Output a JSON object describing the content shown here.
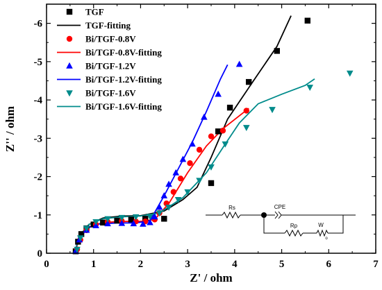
{
  "chart_data": {
    "type": "scatter",
    "xlabel": "Z' / ohm",
    "ylabel": "Z'' / ohm",
    "xlim": [
      0,
      7
    ],
    "ylim": [
      0,
      -6.5
    ],
    "xticks": [
      "0",
      "1",
      "2",
      "3",
      "4",
      "5",
      "6",
      "7"
    ],
    "yticks": [
      "0",
      "-1",
      "-2",
      "-3",
      "-4",
      "-5",
      "-6"
    ],
    "legend_position": "top-left",
    "series": [
      {
        "name": "TGF",
        "kind": "points",
        "marker": "square",
        "color": "#000000",
        "points": [
          [
            0.62,
            -0.05
          ],
          [
            0.67,
            -0.3
          ],
          [
            0.74,
            -0.5
          ],
          [
            0.85,
            -0.65
          ],
          [
            1.0,
            -0.75
          ],
          [
            1.2,
            -0.8
          ],
          [
            1.5,
            -0.85
          ],
          [
            1.8,
            -0.88
          ],
          [
            2.1,
            -0.9
          ],
          [
            2.5,
            -0.9
          ],
          [
            3.5,
            -1.83
          ],
          [
            3.65,
            -3.18
          ],
          [
            3.9,
            -3.8
          ],
          [
            4.3,
            -4.47
          ],
          [
            4.9,
            -5.28
          ],
          [
            5.55,
            -6.07
          ]
        ]
      },
      {
        "name": "TGF-fitting",
        "kind": "line",
        "color": "#000000",
        "points": [
          [
            0.6,
            0
          ],
          [
            0.7,
            -0.45
          ],
          [
            0.9,
            -0.75
          ],
          [
            1.2,
            -0.92
          ],
          [
            1.6,
            -0.97
          ],
          [
            2.0,
            -0.98
          ],
          [
            2.5,
            -1.1
          ],
          [
            2.9,
            -1.4
          ],
          [
            3.2,
            -1.72
          ],
          [
            3.5,
            -2.5
          ],
          [
            3.85,
            -3.5
          ],
          [
            4.4,
            -4.5
          ],
          [
            4.9,
            -5.4
          ],
          [
            5.2,
            -6.2
          ]
        ]
      },
      {
        "name": "Bi/TGF-0.8V",
        "kind": "points",
        "marker": "circle",
        "color": "#ff0000",
        "points": [
          [
            0.65,
            -0.1
          ],
          [
            0.72,
            -0.35
          ],
          [
            0.85,
            -0.6
          ],
          [
            1.05,
            -0.75
          ],
          [
            1.3,
            -0.82
          ],
          [
            1.6,
            -0.84
          ],
          [
            1.9,
            -0.83
          ],
          [
            2.1,
            -0.83
          ],
          [
            2.3,
            -0.88
          ],
          [
            2.4,
            -1.05
          ],
          [
            2.55,
            -1.3
          ],
          [
            2.7,
            -1.6
          ],
          [
            2.85,
            -1.95
          ],
          [
            3.05,
            -2.35
          ],
          [
            3.25,
            -2.7
          ],
          [
            3.5,
            -3.05
          ],
          [
            3.75,
            -3.2
          ],
          [
            4.25,
            -3.72
          ]
        ]
      },
      {
        "name": "Bi/TGF-0.8V-fitting",
        "kind": "line",
        "color": "#ff0000",
        "points": [
          [
            0.6,
            0
          ],
          [
            0.7,
            -0.4
          ],
          [
            0.9,
            -0.68
          ],
          [
            1.2,
            -0.8
          ],
          [
            1.6,
            -0.83
          ],
          [
            2.0,
            -0.83
          ],
          [
            2.3,
            -0.88
          ],
          [
            2.6,
            -1.3
          ],
          [
            3.0,
            -2.1
          ],
          [
            3.4,
            -2.8
          ],
          [
            3.75,
            -3.25
          ],
          [
            4.3,
            -3.78
          ]
        ]
      },
      {
        "name": "Bi/TGF-1.2V",
        "kind": "points",
        "marker": "triangle-up",
        "color": "#0000ff",
        "points": [
          [
            0.62,
            -0.05
          ],
          [
            0.7,
            -0.35
          ],
          [
            0.85,
            -0.6
          ],
          [
            1.05,
            -0.72
          ],
          [
            1.3,
            -0.77
          ],
          [
            1.6,
            -0.78
          ],
          [
            1.85,
            -0.77
          ],
          [
            2.05,
            -0.76
          ],
          [
            2.2,
            -0.8
          ],
          [
            2.3,
            -0.95
          ],
          [
            2.4,
            -1.2
          ],
          [
            2.5,
            -1.5
          ],
          [
            2.6,
            -1.8
          ],
          [
            2.75,
            -2.1
          ],
          [
            2.9,
            -2.45
          ],
          [
            3.1,
            -2.85
          ],
          [
            3.35,
            -3.55
          ],
          [
            3.65,
            -4.15
          ],
          [
            4.1,
            -4.93
          ]
        ]
      },
      {
        "name": "Bi/TGF-1.2V-fitting",
        "kind": "line",
        "color": "#0000ff",
        "points": [
          [
            0.6,
            0
          ],
          [
            0.68,
            -0.4
          ],
          [
            0.85,
            -0.65
          ],
          [
            1.1,
            -0.76
          ],
          [
            1.5,
            -0.79
          ],
          [
            1.9,
            -0.79
          ],
          [
            2.2,
            -0.85
          ],
          [
            2.5,
            -1.5
          ],
          [
            2.8,
            -2.2
          ],
          [
            3.1,
            -2.9
          ],
          [
            3.4,
            -3.7
          ],
          [
            3.7,
            -4.55
          ],
          [
            3.85,
            -4.92
          ]
        ]
      },
      {
        "name": "Bi/TGF-1.6V",
        "kind": "points",
        "marker": "triangle-down",
        "color": "#008b8b",
        "points": [
          [
            0.65,
            -0.1
          ],
          [
            0.72,
            -0.4
          ],
          [
            0.85,
            -0.65
          ],
          [
            1.05,
            -0.82
          ],
          [
            1.3,
            -0.9
          ],
          [
            1.6,
            -0.93
          ],
          [
            1.9,
            -0.95
          ],
          [
            2.2,
            -0.96
          ],
          [
            2.4,
            -1.05
          ],
          [
            2.6,
            -1.2
          ],
          [
            2.8,
            -1.4
          ],
          [
            3.0,
            -1.6
          ],
          [
            3.25,
            -1.9
          ],
          [
            3.5,
            -2.25
          ],
          [
            3.8,
            -2.85
          ],
          [
            4.25,
            -3.28
          ],
          [
            4.8,
            -3.75
          ],
          [
            5.6,
            -4.33
          ],
          [
            6.45,
            -4.7
          ]
        ]
      },
      {
        "name": "Bi/TGF-1.6V-fitting",
        "kind": "line",
        "color": "#008b8b",
        "points": [
          [
            0.6,
            0
          ],
          [
            0.7,
            -0.45
          ],
          [
            0.9,
            -0.75
          ],
          [
            1.2,
            -0.9
          ],
          [
            1.6,
            -0.95
          ],
          [
            2.0,
            -0.97
          ],
          [
            2.4,
            -1.05
          ],
          [
            2.9,
            -1.45
          ],
          [
            3.4,
            -2.1
          ],
          [
            3.8,
            -2.85
          ],
          [
            4.1,
            -3.4
          ],
          [
            4.5,
            -3.9
          ],
          [
            5.0,
            -4.15
          ],
          [
            5.5,
            -4.38
          ],
          [
            5.7,
            -4.55
          ]
        ]
      }
    ]
  },
  "circuit": {
    "rs_label": "Rs",
    "cpe_label": "CPE",
    "rp_label": "Rp",
    "w_label": "W",
    "w_sub": "o"
  }
}
